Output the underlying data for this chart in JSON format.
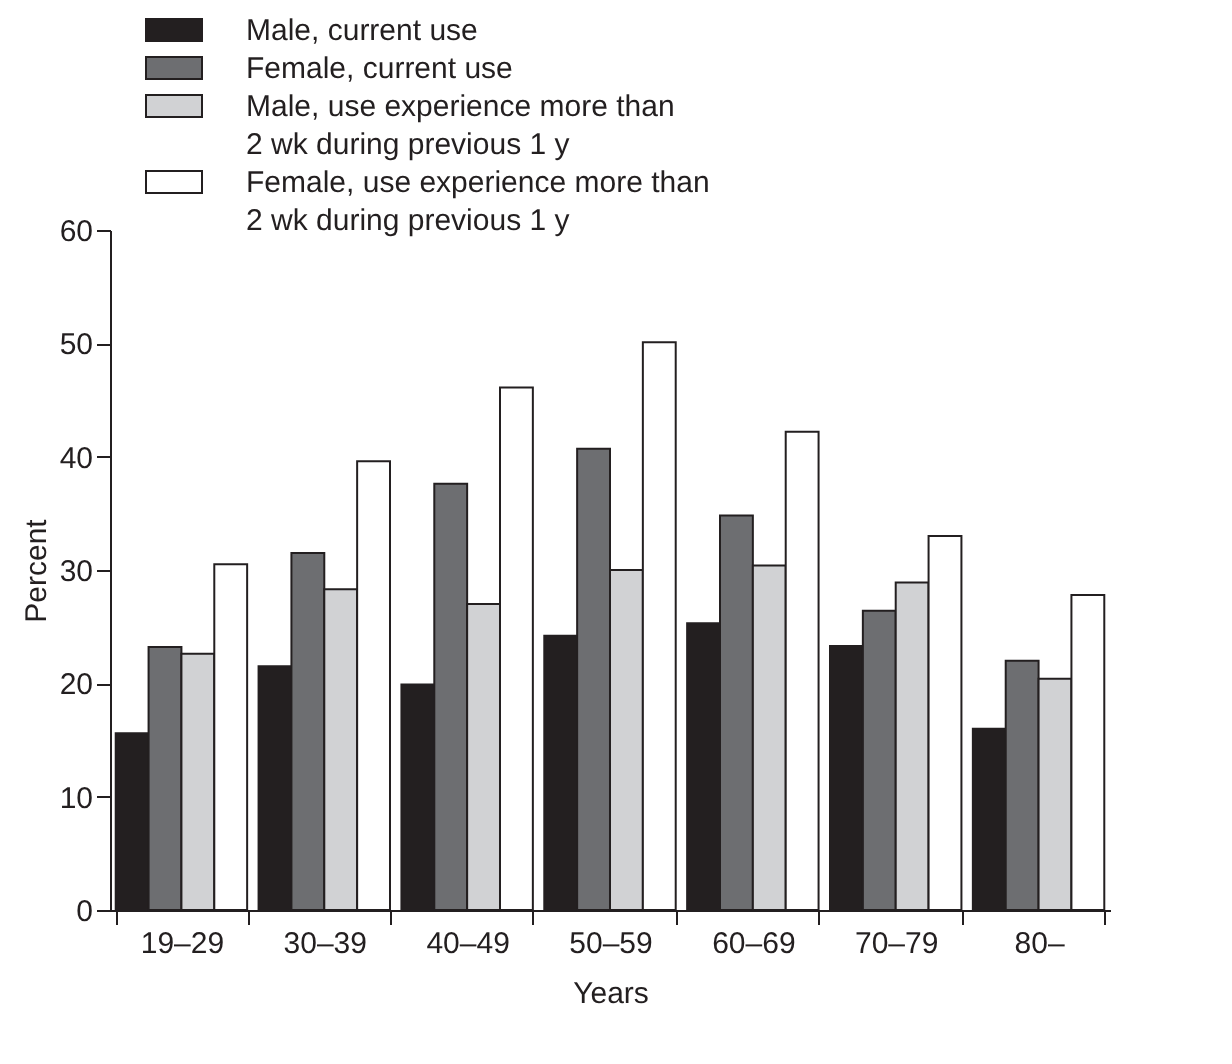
{
  "chart_data": {
    "type": "bar",
    "xlabel": "Years",
    "ylabel": "Percent",
    "categories": [
      "19–29",
      "30–39",
      "40–49",
      "50–59",
      "60–69",
      "70–79",
      "80–"
    ],
    "series": [
      {
        "name": "Male, current use",
        "color": "#231f20",
        "values": [
          15.6,
          21.5,
          19.9,
          24.2,
          25.3,
          23.3,
          16.0
        ]
      },
      {
        "name": "Female, current use",
        "color": "#6d6e71",
        "values": [
          23.2,
          31.5,
          37.6,
          40.7,
          34.8,
          26.4,
          22.0
        ]
      },
      {
        "name": "Male, use experience more than\n2 wk during previous 1 y",
        "color": "#d1d2d4",
        "values": [
          22.6,
          28.3,
          27.0,
          30.0,
          30.4,
          28.9,
          20.4
        ]
      },
      {
        "name": "Female, use experience more than\n2 wk during previous 1 y",
        "color": "#ffffff",
        "values": [
          30.5,
          39.6,
          46.1,
          50.1,
          42.2,
          33.0,
          27.8
        ]
      }
    ],
    "ylim": [
      0,
      60
    ],
    "yticks": [
      0,
      10,
      20,
      30,
      40,
      50,
      60
    ],
    "grid": false,
    "legend": "top"
  }
}
